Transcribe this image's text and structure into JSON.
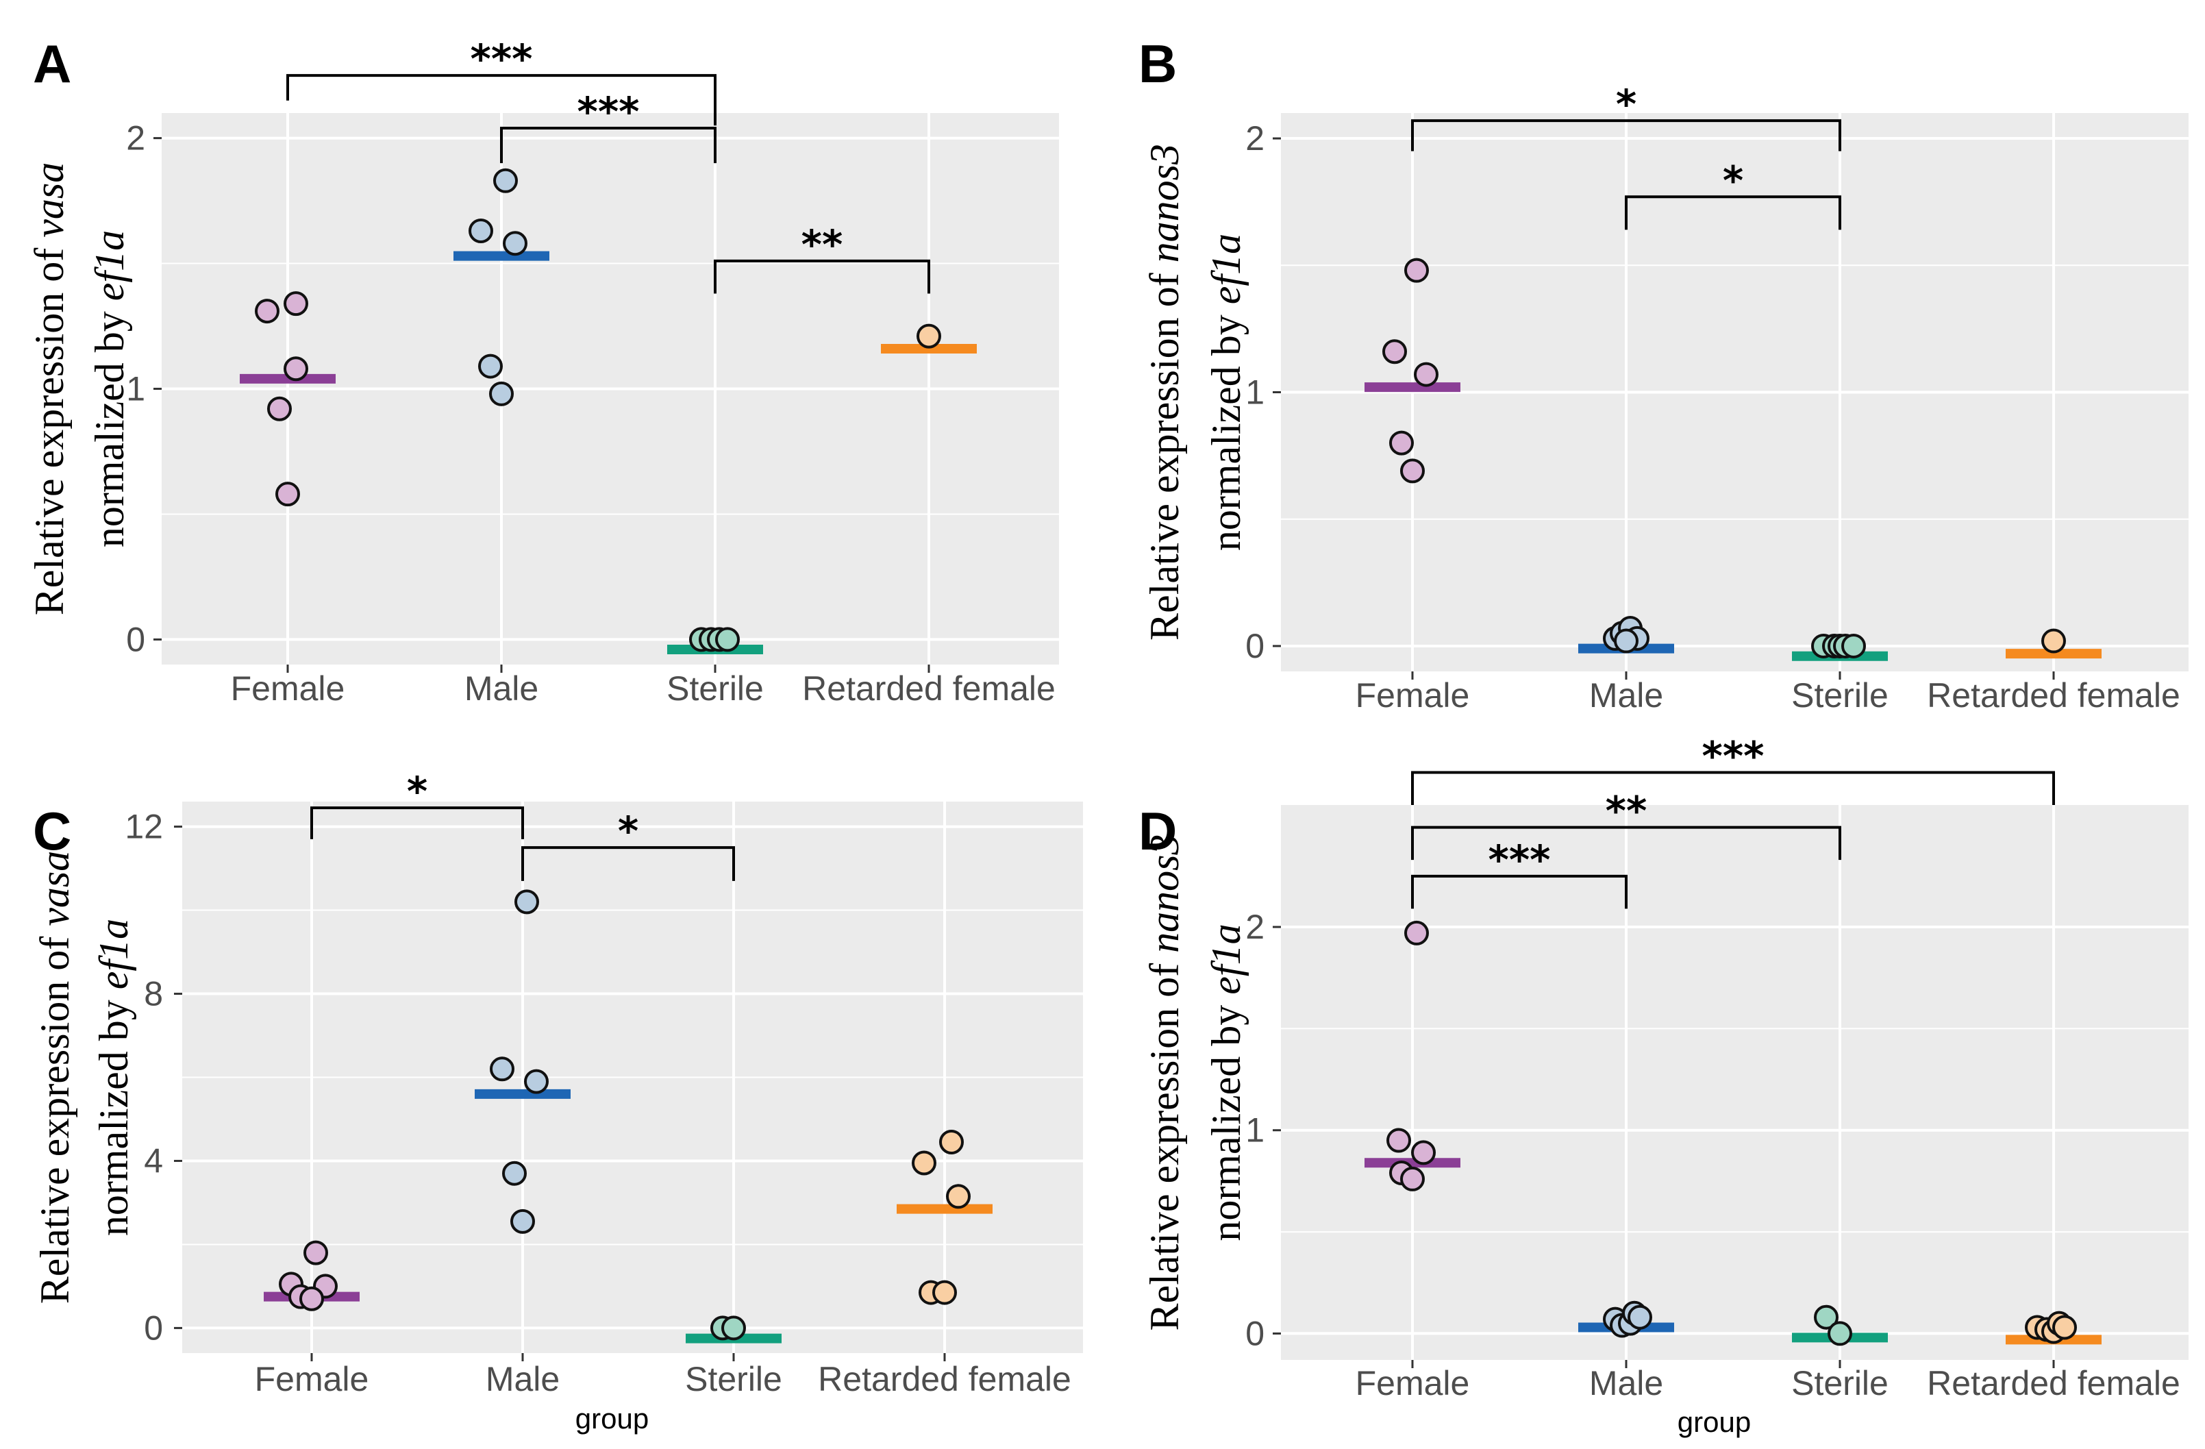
{
  "colors": {
    "panel_bg": "#ebebeb",
    "grid": "#ffffff",
    "Female": "#8b3f96",
    "Male": "#1e66b4",
    "Sterile": "#12a07e",
    "Retarded female": "#f58a1f",
    "Female_point": "#d9b3d5",
    "Male_point": "#b8cde0",
    "Sterile_point": "#9fd6c3",
    "Retarded female_point": "#f9cfa3"
  },
  "chart_data": [
    {
      "type": "scatter",
      "panel": "A",
      "ylabel_prefix": "Relative expression of ",
      "gene": "vasa",
      "ylabel_line2": "normalized by ",
      "normalizer": "ef1a",
      "xlabel": "",
      "ylim": [
        -0.1,
        2.1
      ],
      "yticks": [
        0,
        1,
        2
      ],
      "ytick_labels": [
        "0",
        "1",
        "2"
      ],
      "categories": [
        "Female",
        "Male",
        "Sterile",
        "Retarded female"
      ],
      "series": [
        {
          "name": "Female",
          "points": [
            [
              -0.15,
              1.31
            ],
            [
              0.06,
              1.34
            ],
            [
              0.06,
              1.08
            ],
            [
              -0.06,
              0.92
            ],
            [
              0.0,
              0.58
            ]
          ],
          "mean": 1.04
        },
        {
          "name": "Male",
          "points": [
            [
              -0.15,
              1.63
            ],
            [
              0.03,
              1.83
            ],
            [
              0.1,
              1.58
            ],
            [
              -0.08,
              1.09
            ],
            [
              0.0,
              0.98
            ]
          ],
          "mean": 1.53
        },
        {
          "name": "Sterile",
          "points": [
            [
              -0.1,
              0.0
            ],
            [
              -0.03,
              0.0
            ],
            [
              0.03,
              0.0
            ],
            [
              0.09,
              0.0
            ]
          ],
          "mean": -0.04
        },
        {
          "name": "Retarded female",
          "points": [
            [
              0.0,
              1.21
            ]
          ],
          "mean": 1.16
        }
      ],
      "significance": [
        {
          "from": 0,
          "to": 2,
          "y": 2.25,
          "left_end": 2.15,
          "right_end": 2.05,
          "label": "***"
        },
        {
          "from": 1,
          "to": 2,
          "y": 2.04,
          "left_end": 1.9,
          "right_end": 1.9,
          "label": "***"
        },
        {
          "from": 2,
          "to": 3,
          "y": 1.51,
          "left_end": 1.38,
          "right_end": 1.38,
          "label": "**"
        }
      ]
    },
    {
      "type": "scatter",
      "panel": "B",
      "ylabel_prefix": "Relative expression of ",
      "gene": "nanos3",
      "ylabel_line2": "normalized by ",
      "normalizer": "ef1a",
      "xlabel": "",
      "ylim": [
        -0.1,
        2.1
      ],
      "yticks": [
        0,
        1,
        2
      ],
      "ytick_labels": [
        "0",
        "1",
        "2"
      ],
      "categories": [
        "Female",
        "Male",
        "Sterile",
        "Retarded female"
      ],
      "series": [
        {
          "name": "Female",
          "points": [
            [
              0.03,
              1.48
            ],
            [
              -0.13,
              1.16
            ],
            [
              0.1,
              1.07
            ],
            [
              -0.08,
              0.8
            ],
            [
              0.0,
              0.69
            ]
          ],
          "mean": 1.02
        },
        {
          "name": "Male",
          "points": [
            [
              -0.08,
              0.03
            ],
            [
              -0.03,
              0.05
            ],
            [
              0.03,
              0.07
            ],
            [
              0.08,
              0.03
            ],
            [
              0.0,
              0.02
            ]
          ],
          "mean": -0.01
        },
        {
          "name": "Sterile",
          "points": [
            [
              -0.12,
              0.0
            ],
            [
              -0.04,
              0.0
            ],
            [
              0.0,
              0.0
            ],
            [
              0.04,
              0.0
            ],
            [
              0.1,
              0.0
            ]
          ],
          "mean": -0.04
        },
        {
          "name": "Retarded female",
          "points": [
            [
              0.0,
              0.02
            ]
          ],
          "mean": -0.03
        }
      ],
      "significance": [
        {
          "from": 0,
          "to": 2,
          "y": 2.07,
          "left_end": 1.95,
          "right_end": 1.95,
          "label": "*"
        },
        {
          "from": 1,
          "to": 2,
          "y": 1.77,
          "left_end": 1.64,
          "right_end": 1.64,
          "label": "*"
        }
      ]
    },
    {
      "type": "scatter",
      "panel": "C",
      "ylabel_prefix": "Relative expression of ",
      "gene": "vasa",
      "ylabel_line2": "normalized by ",
      "normalizer": "ef1a",
      "xlabel": "group",
      "ylim": [
        -0.6,
        12.6
      ],
      "yticks": [
        0,
        4,
        8,
        12
      ],
      "ytick_labels": [
        "0",
        "4",
        "8",
        "12"
      ],
      "categories": [
        "Female",
        "Male",
        "Sterile",
        "Retarded female"
      ],
      "series": [
        {
          "name": "Female",
          "points": [
            [
              -0.15,
              1.05
            ],
            [
              0.03,
              1.8
            ],
            [
              0.1,
              1.0
            ],
            [
              -0.08,
              0.75
            ],
            [
              0.0,
              0.7
            ]
          ],
          "mean": 0.75
        },
        {
          "name": "Male",
          "points": [
            [
              0.03,
              10.2
            ],
            [
              -0.15,
              6.2
            ],
            [
              0.1,
              5.9
            ],
            [
              -0.06,
              3.7
            ],
            [
              0.0,
              2.55
            ]
          ],
          "mean": 5.6
        },
        {
          "name": "Sterile",
          "points": [
            [
              -0.08,
              0.0
            ],
            [
              0.0,
              0.0
            ]
          ],
          "mean": -0.25
        },
        {
          "name": "Retarded female",
          "points": [
            [
              -0.15,
              3.95
            ],
            [
              0.05,
              4.45
            ],
            [
              0.1,
              3.15
            ],
            [
              -0.1,
              0.85
            ],
            [
              0.0,
              0.85
            ]
          ],
          "mean": 2.85
        }
      ],
      "significance": [
        {
          "from": 0,
          "to": 1,
          "y": 12.45,
          "left_end": 11.7,
          "right_end": 11.7,
          "label": "*"
        },
        {
          "from": 1,
          "to": 2,
          "y": 11.5,
          "left_end": 10.7,
          "right_end": 10.7,
          "label": "*"
        }
      ]
    },
    {
      "type": "scatter",
      "panel": "D",
      "ylabel_prefix": "Relative expression of ",
      "gene": "nanos3",
      "ylabel_line2": "normalized by ",
      "normalizer": "ef1a",
      "xlabel": "group",
      "ylim": [
        -0.13,
        2.6
      ],
      "yticks": [
        0,
        1,
        2
      ],
      "ytick_labels": [
        "0",
        "1",
        "2"
      ],
      "categories": [
        "Female",
        "Male",
        "Sterile",
        "Retarded female"
      ],
      "series": [
        {
          "name": "Female",
          "points": [
            [
              0.03,
              1.97
            ],
            [
              -0.1,
              0.95
            ],
            [
              0.08,
              0.89
            ],
            [
              -0.08,
              0.79
            ],
            [
              0.0,
              0.76
            ]
          ],
          "mean": 0.84
        },
        {
          "name": "Male",
          "points": [
            [
              -0.08,
              0.07
            ],
            [
              -0.03,
              0.04
            ],
            [
              0.03,
              0.05
            ],
            [
              0.06,
              0.1
            ],
            [
              0.1,
              0.08
            ]
          ],
          "mean": 0.03
        },
        {
          "name": "Sterile",
          "points": [
            [
              -0.1,
              0.08
            ],
            [
              0.0,
              0.0
            ]
          ],
          "mean": -0.02
        },
        {
          "name": "Retarded female",
          "points": [
            [
              -0.12,
              0.03
            ],
            [
              -0.05,
              0.02
            ],
            [
              0.0,
              0.01
            ],
            [
              0.04,
              0.05
            ],
            [
              0.08,
              0.03
            ]
          ],
          "mean": -0.03
        }
      ],
      "significance": [
        {
          "from": 0,
          "to": 3,
          "y": 2.76,
          "left_end": 2.6,
          "right_end": 2.6,
          "label": "***"
        },
        {
          "from": 0,
          "to": 2,
          "y": 2.49,
          "left_end": 2.33,
          "right_end": 2.33,
          "label": "**"
        },
        {
          "from": 0,
          "to": 1,
          "y": 2.25,
          "left_end": 2.09,
          "right_end": 2.09,
          "label": "***"
        }
      ]
    }
  ]
}
